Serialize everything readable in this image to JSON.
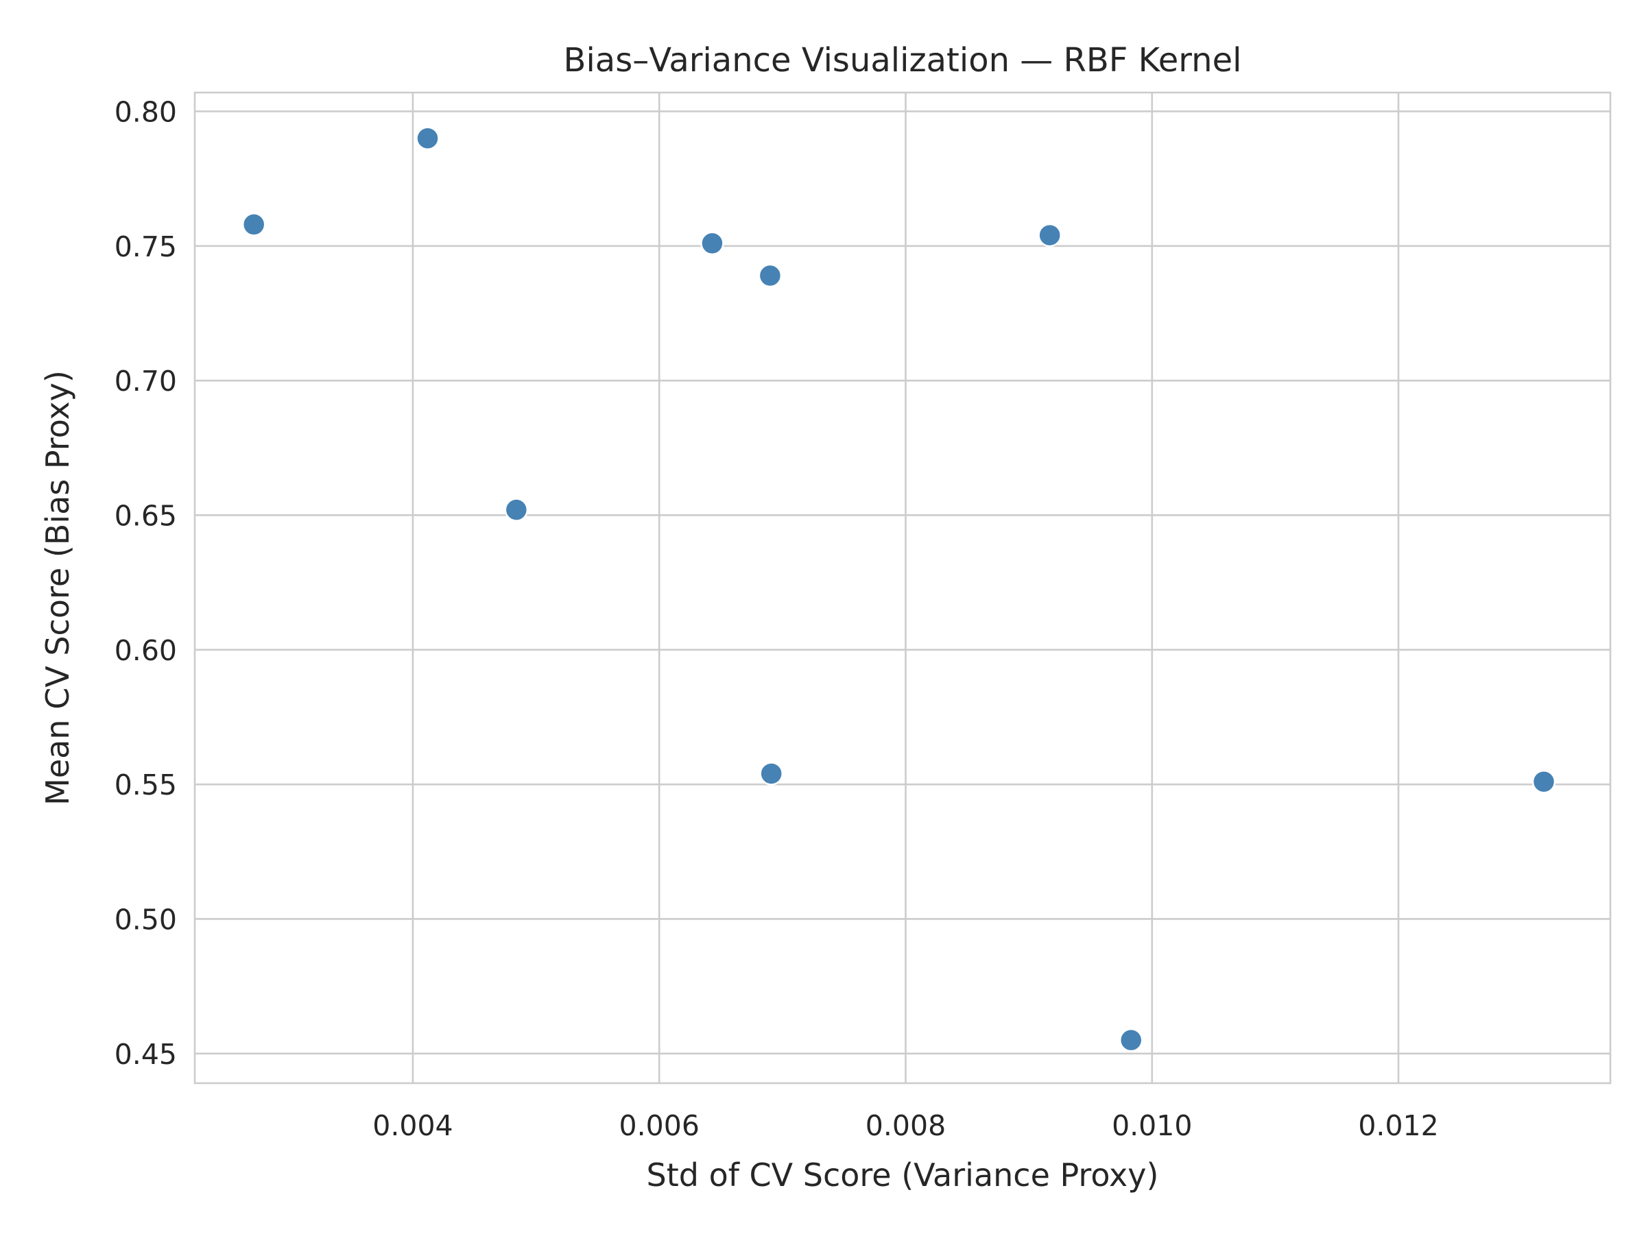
{
  "chart_data": {
    "type": "scatter",
    "title": "Bias–Variance Visualization — RBF Kernel",
    "xlabel": "Std of CV Score (Variance Proxy)",
    "ylabel": "Mean CV Score (Bias Proxy)",
    "xlim": [
      0.00223,
      0.01372
    ],
    "ylim": [
      0.439,
      0.807
    ],
    "xticks": [
      0.004,
      0.006,
      0.008,
      0.01,
      0.012
    ],
    "xtick_labels": [
      "0.004",
      "0.006",
      "0.008",
      "0.010",
      "0.012"
    ],
    "yticks": [
      0.45,
      0.5,
      0.55,
      0.6,
      0.65,
      0.7,
      0.75,
      0.8
    ],
    "ytick_labels": [
      "0.45",
      "0.50",
      "0.55",
      "0.60",
      "0.65",
      "0.70",
      "0.75",
      "0.80"
    ],
    "grid": true,
    "color": "#4682b4",
    "points": [
      {
        "x": 0.00271,
        "y": 0.758
      },
      {
        "x": 0.00412,
        "y": 0.79
      },
      {
        "x": 0.00484,
        "y": 0.652
      },
      {
        "x": 0.00643,
        "y": 0.751
      },
      {
        "x": 0.0069,
        "y": 0.739
      },
      {
        "x": 0.00691,
        "y": 0.554
      },
      {
        "x": 0.00917,
        "y": 0.754
      },
      {
        "x": 0.00983,
        "y": 0.455
      },
      {
        "x": 0.01318,
        "y": 0.551
      }
    ]
  }
}
